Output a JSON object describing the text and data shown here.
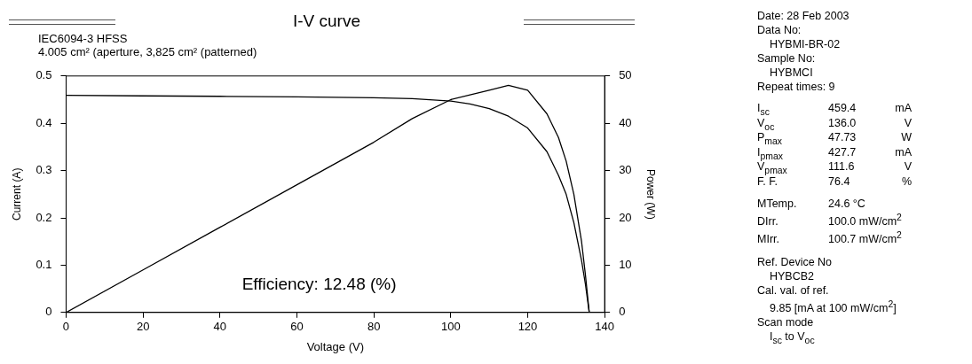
{
  "chart_data": {
    "type": "line",
    "title": "I-V curve",
    "subtitle": "IEC6094-3 HFSS\n4.005 cm² (aperture, 3,825 cm² (patterned)",
    "xlabel": "Voltage (V)",
    "ylabel": "Current (A)",
    "y2label": "Power (W)",
    "x": [
      0,
      20,
      40,
      60,
      80,
      90,
      100,
      105,
      110,
      115,
      120,
      125,
      128,
      130,
      132,
      134,
      135,
      136
    ],
    "series": [
      {
        "color": "#000000",
        "values": [
          0.459,
          0.458,
          0.457,
          0.456,
          0.454,
          0.452,
          0.447,
          0.441,
          0.431,
          0.415,
          0.39,
          0.34,
          0.29,
          0.25,
          0.19,
          0.11,
          0.06,
          0
        ]
      },
      {
        "color": "#000000",
        "axis": "y2",
        "values": [
          0,
          9,
          18,
          27,
          36,
          41,
          45,
          46,
          47,
          48,
          47,
          42,
          37,
          32,
          25,
          15,
          8,
          0
        ]
      }
    ],
    "xlim": [
      0,
      140
    ],
    "xticks": [
      0,
      20,
      40,
      60,
      80,
      100,
      120,
      140
    ],
    "ylim": [
      0,
      0.5
    ],
    "yticks": [
      0,
      0.1,
      0.2,
      0.3,
      0.4,
      0.5
    ],
    "y2lim": [
      0,
      50
    ],
    "y2ticks": [
      0,
      10,
      20,
      30,
      40,
      50
    ],
    "grid": false,
    "legend": false,
    "annotations": [
      "Efficiency: 12.48 (%)",
      "Date: 28 Feb 2003",
      "Data No:",
      "HYBMI-BR-02",
      "Sample No:",
      "HYBMCI",
      "Repeat times: 9",
      "I$_{sc}$\t459.4\tmA",
      "V$_{oc}$\t136.0\tV",
      "P$_{max}$\t47.73\tW",
      "I$_{pmax}$\t427.7\tmA",
      "V$_{pmax}$\t111.6\tV",
      "F. F.\t76.4\t%",
      "MTemp.\t24.6 °C",
      "DIrr.\t100.0 mW/cm$^{2}$",
      "MIrr.\t100.7 mW/cm$^{2}$",
      "Ref. Device No",
      "HYBCB2",
      "Cal. val. of ref.",
      "9.85 [mA at 100 mW/cm$^{2}$]",
      "Scan mode",
      "I$_{sc}$ to V$_{oc}$"
    ]
  }
}
